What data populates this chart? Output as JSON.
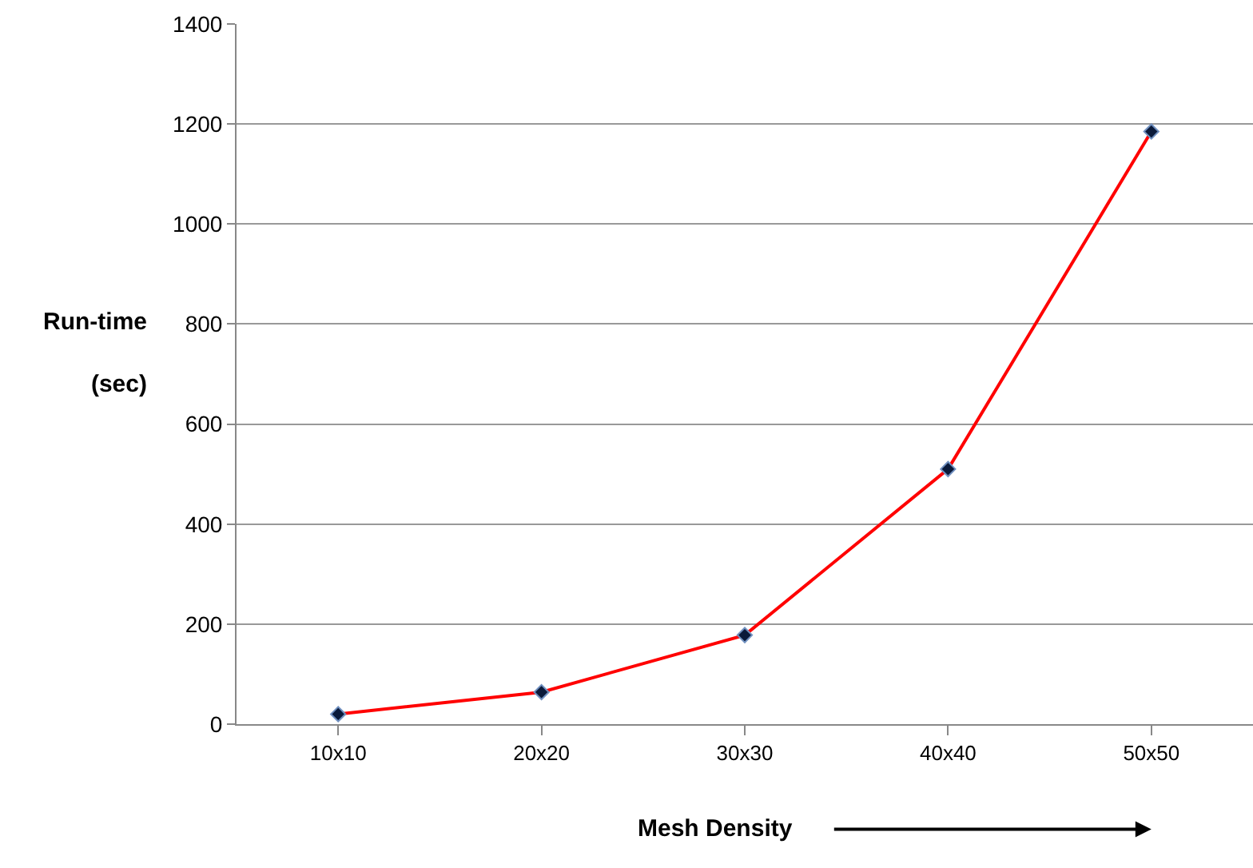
{
  "chart_data": {
    "type": "line",
    "xlabel": "Mesh Density",
    "ylabel": "Run-time\n(sec)",
    "categories": [
      "10x10",
      "20x20",
      "30x30",
      "40x40",
      "50x50"
    ],
    "series": [
      {
        "color": "#ff0000",
        "values": [
          20,
          64,
          178,
          510,
          1185
        ]
      }
    ],
    "ylim": [
      0,
      1400
    ],
    "yticks": [
      0,
      200,
      400,
      600,
      800,
      1000,
      1200,
      1400
    ],
    "grid": "y",
    "legend": false,
    "marker": "diamond",
    "line_style": "solid"
  }
}
